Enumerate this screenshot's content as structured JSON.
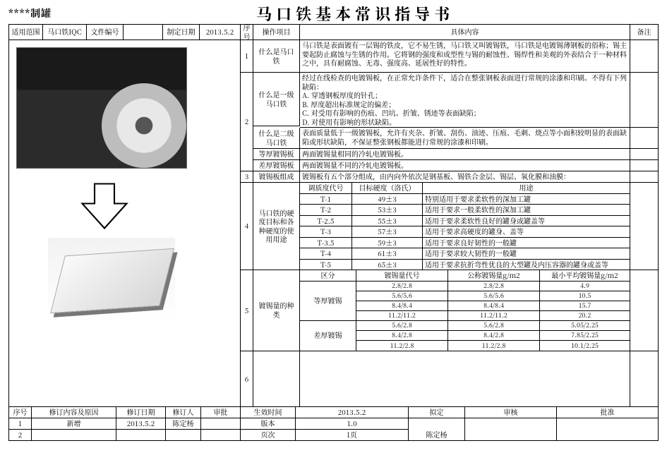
{
  "brand": "****制罐",
  "title": "马口铁基本常识指导书",
  "header": {
    "scopeLabel": "适用范围",
    "scopeVal": "马口铁IQC",
    "docNoLabel": "文件编号",
    "docNoVal": "",
    "dateLabel": "制定日期",
    "dateVal": "2013.5.2",
    "seqLabel": "序号",
    "opLabel": "操作项目",
    "contentLabel": "具体内容",
    "remarkLabel": "备注"
  },
  "rows": [
    {
      "no": "1",
      "item": "什么是马口铁",
      "content": "马口铁是表面镀有一层锡的铁皮，它不易生锈，马口铁又叫镀锡铁，马口铁是电镀锡薄钢板的俗称；锡主要起防止腐蚀与生锈的作用。它将钢的强度和成型性与锡的耐蚀性、锡焊性和美观的外表结合于一种材料之中，具有耐腐蚀、无毒、强度高、延展性好的特性。"
    },
    {
      "no": "2",
      "sub": [
        {
          "item": "什么是一级马口铁",
          "content": "经过在线检查的电镀锡板，在正常允许条件下，适合在整张钢板表面进行常规的涂漆和印刷。不得有下列缺陷：\nA. 穿透钢板厚度的针孔；\nB. 厚度超出标准规定的偏差；\nC. 对受用有影响的伤痕、凹坑、折皱、锈迹等表面缺陷；\nD. 对使用有影响的形状缺陷。"
        },
        {
          "item": "什么是二级马口铁",
          "content": "表面质量低于一级镀锡板，允许有夹杂、折皱、刮伤、油迹、压痕、毛刺、烧点等小面积较明显的表面缺陷或形状缺陷，不保证整张钢板都能进行常规的涂漆和印刷。"
        },
        {
          "item": "等厚镀锡板",
          "content": "两面镀锡量相同的冷轧电镀锡板。"
        },
        {
          "item": "差厚镀锡板",
          "content": "两面镀锡量不同的冷轧电镀锡板。"
        }
      ]
    },
    {
      "no": "3",
      "item": "镀锡板组成",
      "content": "镀锡板有五个部分组成，由内向外依次是钢基板、锡铁合金层、锡层、氧化膜和油膜："
    },
    {
      "no": "4",
      "item": "马口铁的硬度目标和各种硬度的使用用途",
      "table": {
        "headers": [
          "调质度代号",
          "目标硬度（洛氏）",
          "用途"
        ],
        "rows": [
          [
            "T-1",
            "49±3",
            "特别适用于要求柔软性的深加工罐"
          ],
          [
            "T-2",
            "53±3",
            "适用于要求一般柔软性的深加工罐"
          ],
          [
            "T-2.5",
            "55±3",
            "适用于要求柔软性良好的罐身或罐盖等"
          ],
          [
            "T-3",
            "57±3",
            "适用于要求高硬度的罐身、盖等"
          ],
          [
            "T-3.5",
            "59±3",
            "适用于要求良好韧性的一般罐"
          ],
          [
            "T-4",
            "61±3",
            "适用于要求较大韧性的一般罐"
          ],
          [
            "T-5",
            "65±3",
            "适用于要求抗折弯性优良的大型罐及内压容器的罐身或盖等"
          ]
        ]
      }
    },
    {
      "no": "5",
      "item": "镀锡量的种类",
      "table2": {
        "headers": [
          "区分",
          "镀锡量代号",
          "公称镀锡量g/m2",
          "最小平均镀锡量g/m2"
        ],
        "groups": [
          {
            "name": "等厚镀锡",
            "rows": [
              [
                "2.8/2.8",
                "2.8/2.8",
                "4.9"
              ],
              [
                "5.6/5.6",
                "5.6/5.6",
                "10.5"
              ],
              [
                "8.4/8.4",
                "8.4/8.4",
                "15.7"
              ],
              [
                "11.2/11.2",
                "11.2/11.2",
                "20.2"
              ]
            ]
          },
          {
            "name": "差厚镀锡",
            "rows": [
              [
                "5.6/2.8",
                "5.6/2.8",
                "5.05/2.25"
              ],
              [
                "8.4/2.8",
                "8.4/2.8",
                "7.85/2.25"
              ],
              [
                "11.2/2.8",
                "11.2/2.8",
                "10.1/2.25"
              ]
            ]
          }
        ]
      }
    },
    {
      "no": "6",
      "item": "",
      "content": ""
    }
  ],
  "footer": {
    "seq": "序号",
    "change": "修订内容及原因",
    "revDate": "修订日期",
    "reviser": "修订人",
    "approve": "审批",
    "effectDateLabel": "生效时间",
    "effectDateVal": "2013.5.2",
    "draftLabel": "拟定",
    "reviewLabel": "审核",
    "approveLabel": "批准",
    "r1no": "1",
    "r1changeVal": "新增",
    "r1dateVal": "2013.5.2",
    "r1reviser": "陈定杨",
    "verLabel": "版本",
    "verVal": "1.0",
    "pageLabel": "页次",
    "pageVal": "1页",
    "drafter": "陈定杨",
    "r2no": "2"
  }
}
